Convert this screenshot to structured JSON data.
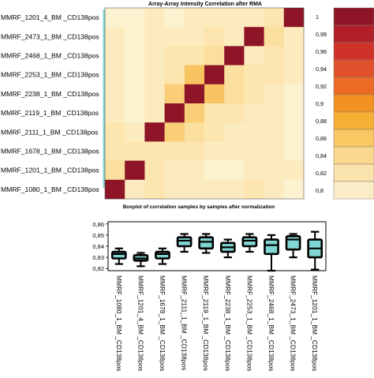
{
  "chart_data": [
    {
      "type": "heatmap",
      "title": "Array-Array Intensity Correlation after RMA",
      "rows": [
        "MMRF_1201_4_BM _CD138pos",
        "MMRF_2473_1_BM _CD138pos",
        "MMRF_2468_1_BM _CD138pos",
        "MMRF_2253_1_BM _CD138pos",
        "MMRF_2238_1_BM _CD138pos",
        "MMRF_2119_1_BM _CD138pos",
        "MMRF_2111_1_BM _CD138pos",
        "MMRF_1678_1_BM _CD138pos",
        "MMRF_1201_1_BM _CD138pos",
        "MMRF_1080_1_BM _CD138pos"
      ],
      "values": [
        [
          0.8,
          0.8,
          0.81,
          0.8,
          0.81,
          0.81,
          0.81,
          0.81,
          0.82,
          1.0
        ],
        [
          0.81,
          0.8,
          0.81,
          0.81,
          0.81,
          0.82,
          0.81,
          1.0,
          0.83,
          0.81
        ],
        [
          0.81,
          0.8,
          0.81,
          0.82,
          0.82,
          0.83,
          1.0,
          0.81,
          0.82,
          0.81
        ],
        [
          0.81,
          0.8,
          0.81,
          0.82,
          0.86,
          1.0,
          0.83,
          0.82,
          0.82,
          0.81
        ],
        [
          0.81,
          0.8,
          0.81,
          0.85,
          1.0,
          0.86,
          0.83,
          0.82,
          0.81,
          0.8
        ],
        [
          0.81,
          0.8,
          0.81,
          1.0,
          0.85,
          0.82,
          0.82,
          0.81,
          0.81,
          0.8
        ],
        [
          0.82,
          0.81,
          1.0,
          0.85,
          0.83,
          0.82,
          0.81,
          0.81,
          0.81,
          0.8
        ],
        [
          0.82,
          0.82,
          0.82,
          0.82,
          0.82,
          0.81,
          0.81,
          0.81,
          0.81,
          0.8
        ],
        [
          0.83,
          1.0,
          0.82,
          0.81,
          0.81,
          0.8,
          0.8,
          0.81,
          0.81,
          0.81
        ],
        [
          1.0,
          0.81,
          0.82,
          0.81,
          0.81,
          0.81,
          0.81,
          0.82,
          0.81,
          0.8
        ]
      ],
      "colorbar_ticks": [
        "1",
        "0,99",
        "0,96",
        "0,94",
        "0,92",
        "0,9",
        "0,88",
        "0,86",
        "0,84",
        "0,82",
        "0,8"
      ],
      "colorbar_colors": [
        "#8e1427",
        "#b1202a",
        "#d0322a",
        "#e0502a",
        "#eb6a24",
        "#f29221",
        "#f6b036",
        "#f8c862",
        "#fad88d",
        "#fbe3ad",
        "#fcedc9"
      ],
      "scale": {
        "min": 0.8,
        "max": 1.0,
        "stops": [
          [
            0.8,
            "#fdf2cf"
          ],
          [
            0.84,
            "#fad88d"
          ],
          [
            0.88,
            "#f6b036"
          ],
          [
            0.92,
            "#e0502a"
          ],
          [
            1.0,
            "#8e1427"
          ]
        ]
      }
    },
    {
      "type": "box",
      "title": "Boxplot of correlation samples by samples after normalization",
      "categories": [
        "MMRF_1080_1_BM _CD138pos",
        "MMRF_1201_4_BM _CD138pos",
        "MMRF_1678_1_BM _CD138pos",
        "MMRF_2111_1_BM _CD138pos",
        "MMRF_2119_1_BM _CD138pos",
        "MMRF_2238_1_BM _CD138pos",
        "MMRF_2253_1_BM _CD138pos",
        "MMRF_2468_1_BM _CD138pos",
        "MMRF_2473_1_BM _CD138pos",
        "MMRF_1201_1_BM _CD138pos"
      ],
      "boxes": [
        {
          "min": 0.824,
          "q1": 0.829,
          "median": 0.833,
          "q3": 0.835,
          "max": 0.838
        },
        {
          "min": 0.822,
          "q1": 0.827,
          "median": 0.829,
          "q3": 0.832,
          "max": 0.834
        },
        {
          "min": 0.824,
          "q1": 0.829,
          "median": 0.833,
          "q3": 0.835,
          "max": 0.838
        },
        {
          "min": 0.835,
          "q1": 0.84,
          "median": 0.845,
          "q3": 0.848,
          "max": 0.851
        },
        {
          "min": 0.834,
          "q1": 0.838,
          "median": 0.844,
          "q3": 0.848,
          "max": 0.851
        },
        {
          "min": 0.83,
          "q1": 0.835,
          "median": 0.839,
          "q3": 0.843,
          "max": 0.846
        },
        {
          "min": 0.835,
          "q1": 0.84,
          "median": 0.845,
          "q3": 0.848,
          "max": 0.851
        },
        {
          "min": 0.818,
          "q1": 0.833,
          "median": 0.841,
          "q3": 0.846,
          "max": 0.85
        },
        {
          "min": 0.83,
          "q1": 0.837,
          "median": 0.846,
          "q3": 0.849,
          "max": 0.851
        },
        {
          "min": 0.819,
          "q1": 0.83,
          "median": 0.838,
          "q3": 0.846,
          "max": 0.853
        }
      ],
      "yticks": [
        "0,86",
        "0,85",
        "0,84",
        "0,83",
        "0,82"
      ],
      "ylim": [
        0.818,
        0.862
      ],
      "box_fill": "#7fd6d2",
      "box_stroke": "#000000",
      "grid": false
    }
  ]
}
